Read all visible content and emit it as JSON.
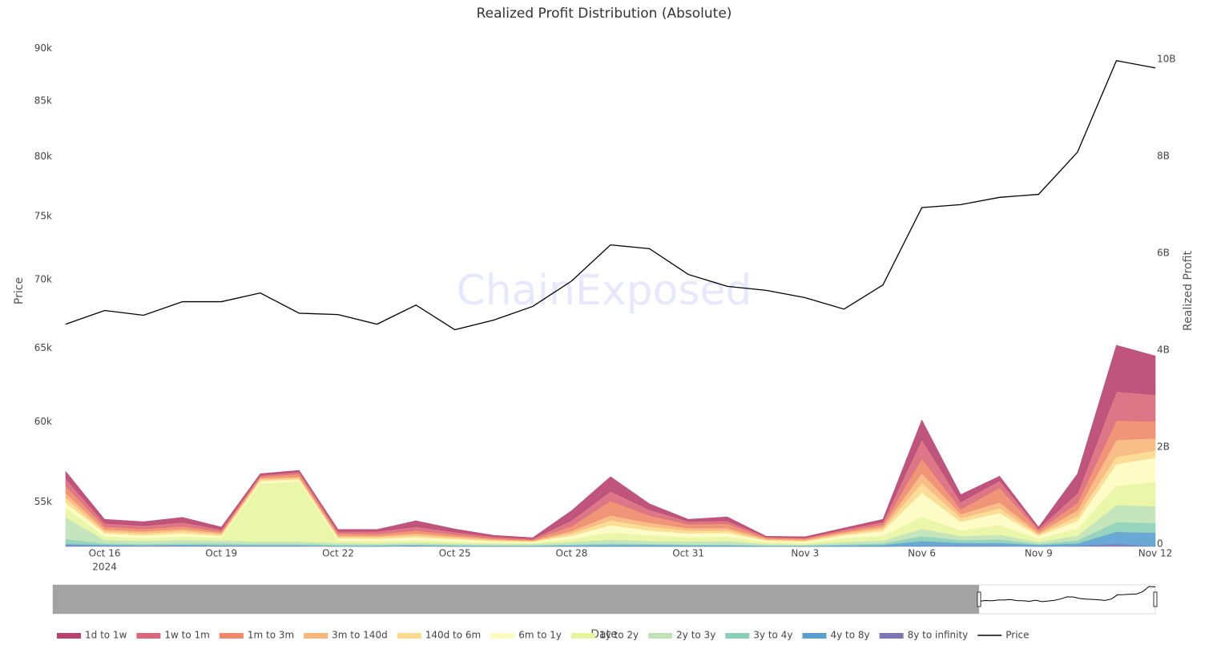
{
  "chart_data": {
    "type": "stacked_area",
    "title": "Realized Profit Distribution (Absolute)",
    "watermark": "ChainExposed",
    "x_label": "Date",
    "y_label": "Price",
    "y2_label": "Realized Profit",
    "x": [
      "2024-10-15",
      "2024-10-16",
      "2024-10-17",
      "2024-10-18",
      "2024-10-19",
      "2024-10-20",
      "2024-10-21",
      "2024-10-22",
      "2024-10-23",
      "2024-10-24",
      "2024-10-25",
      "2024-10-26",
      "2024-10-27",
      "2024-10-28",
      "2024-10-29",
      "2024-10-30",
      "2024-10-31",
      "2024-11-01",
      "2024-11-02",
      "2024-11-03",
      "2024-11-04",
      "2024-11-05",
      "2024-11-06",
      "2024-11-07",
      "2024-11-08",
      "2024-11-09",
      "2024-11-10",
      "2024-11-11",
      "2024-11-12"
    ],
    "xlim": [
      "2024-10-15",
      "2024-11-12"
    ],
    "xticks": [
      {
        "value": "2024-10-16",
        "label": "Oct 16"
      },
      {
        "value": "2024-10-19",
        "label": "Oct 19"
      },
      {
        "value": "2024-10-22",
        "label": "Oct 22"
      },
      {
        "value": "2024-10-25",
        "label": "Oct 25"
      },
      {
        "value": "2024-10-28",
        "label": "Oct 28"
      },
      {
        "value": "2024-10-31",
        "label": "Oct 31"
      },
      {
        "value": "2024-11-03",
        "label": "Nov 3"
      },
      {
        "value": "2024-11-06",
        "label": "Nov 6"
      },
      {
        "value": "2024-11-09",
        "label": "Nov 9"
      },
      {
        "value": "2024-11-12",
        "label": "Nov 12"
      }
    ],
    "xtick_year": "2024",
    "yscale": "log",
    "ylim": [
      52400,
      91600
    ],
    "yticks": [
      {
        "value": 55000,
        "label": "55k"
      },
      {
        "value": 60000,
        "label": "60k"
      },
      {
        "value": 65000,
        "label": "65k"
      },
      {
        "value": 70000,
        "label": "70k"
      },
      {
        "value": 75000,
        "label": "75k"
      },
      {
        "value": 80000,
        "label": "80k"
      },
      {
        "value": 85000,
        "label": "85k"
      },
      {
        "value": 90000,
        "label": "90k"
      }
    ],
    "y2lim": [
      0,
      10610000000
    ],
    "y2ticks": [
      0,
      {
        "value": 2000000000,
        "label": "2B"
      },
      {
        "value": 4000000000,
        "label": "4B"
      },
      {
        "value": 6000000000,
        "label": "6B"
      },
      {
        "value": 8000000000,
        "label": "8B"
      },
      {
        "value": 10000000000,
        "label": "10B"
      }
    ],
    "grid": false,
    "legend": "bottom",
    "series": [
      {
        "name": "1d to 1w",
        "type": "area",
        "axis": "y2",
        "color": "#b8416e",
        "values": [
          150000000.0,
          80000000.0,
          80000000.0,
          100000000.0,
          50000000.0,
          30000000.0,
          30000000.0,
          40000000.0,
          40000000.0,
          120000000.0,
          60000000.0,
          30000000.0,
          20000000.0,
          200000000.0,
          300000000.0,
          120000000.0,
          40000000.0,
          80000000.0,
          10000000.0,
          20000000.0,
          30000000.0,
          50000000.0,
          400000000.0,
          150000000.0,
          90000000.0,
          30000000.0,
          400000000.0,
          950000000.0,
          800000000.0
        ]
      },
      {
        "name": "1w to 1m",
        "type": "area",
        "axis": "y2",
        "color": "#d9687a",
        "values": [
          150000000.0,
          70000000.0,
          70000000.0,
          80000000.0,
          40000000.0,
          30000000.0,
          40000000.0,
          40000000.0,
          50000000.0,
          80000000.0,
          50000000.0,
          30000000.0,
          20000000.0,
          120000000.0,
          200000000.0,
          120000000.0,
          60000000.0,
          60000000.0,
          20000000.0,
          20000000.0,
          30000000.0,
          50000000.0,
          400000000.0,
          150000000.0,
          150000000.0,
          40000000.0,
          200000000.0,
          600000000.0,
          550000000.0
        ]
      },
      {
        "name": "1m to 3m",
        "type": "area",
        "axis": "y2",
        "color": "#f0896a",
        "values": [
          150000000.0,
          60000000.0,
          50000000.0,
          60000000.0,
          30000000.0,
          30000000.0,
          60000000.0,
          40000000.0,
          40000000.0,
          60000000.0,
          40000000.0,
          20000000.0,
          20000000.0,
          100000000.0,
          300000000.0,
          150000000.0,
          80000000.0,
          90000000.0,
          20000000.0,
          20000000.0,
          30000000.0,
          50000000.0,
          300000000.0,
          100000000.0,
          300000000.0,
          50000000.0,
          150000000.0,
          400000000.0,
          350000000.0
        ]
      },
      {
        "name": "3m to 140d",
        "type": "area",
        "axis": "y2",
        "color": "#f8b67a",
        "values": [
          100000000.0,
          40000000.0,
          40000000.0,
          40000000.0,
          30000000.0,
          30000000.0,
          30000000.0,
          30000000.0,
          30000000.0,
          40000000.0,
          30000000.0,
          20000000.0,
          10000000.0,
          50000000.0,
          100000000.0,
          80000000.0,
          50000000.0,
          50000000.0,
          20000000.0,
          20000000.0,
          30000000.0,
          40000000.0,
          200000000.0,
          80000000.0,
          120000000.0,
          30000000.0,
          120000000.0,
          350000000.0,
          250000000.0
        ]
      },
      {
        "name": "140d to 6m",
        "type": "area",
        "axis": "y2",
        "color": "#fbd98d",
        "values": [
          100000000.0,
          40000000.0,
          40000000.0,
          50000000.0,
          30000000.0,
          30000000.0,
          30000000.0,
          30000000.0,
          30000000.0,
          40000000.0,
          30000000.0,
          20000000.0,
          10000000.0,
          50000000.0,
          100000000.0,
          80000000.0,
          60000000.0,
          50000000.0,
          20000000.0,
          20000000.0,
          30000000.0,
          50000000.0,
          200000000.0,
          80000000.0,
          100000000.0,
          30000000.0,
          100000000.0,
          150000000.0,
          150000000.0
        ]
      },
      {
        "name": "6m to 1y",
        "type": "area",
        "axis": "y2",
        "color": "#fdfcc0",
        "values": [
          100000000.0,
          60000000.0,
          60000000.0,
          70000000.0,
          40000000.0,
          50000000.0,
          40000000.0,
          50000000.0,
          50000000.0,
          60000000.0,
          50000000.0,
          30000000.0,
          20000000.0,
          70000000.0,
          150000000.0,
          100000000.0,
          80000000.0,
          80000000.0,
          30000000.0,
          30000000.0,
          60000000.0,
          100000000.0,
          500000000.0,
          180000000.0,
          250000000.0,
          60000000.0,
          160000000.0,
          450000000.0,
          500000000.0
        ]
      },
      {
        "name": "1y to 2y",
        "type": "area",
        "axis": "y2",
        "color": "#e8f5a0",
        "values": [
          200000000.0,
          80000000.0,
          60000000.0,
          70000000.0,
          60000000.0,
          1200000000.0,
          1240000000.0,
          50000000.0,
          50000000.0,
          50000000.0,
          40000000.0,
          30000000.0,
          30000000.0,
          60000000.0,
          150000000.0,
          120000000.0,
          90000000.0,
          90000000.0,
          40000000.0,
          30000000.0,
          80000000.0,
          100000000.0,
          250000000.0,
          120000000.0,
          200000000.0,
          70000000.0,
          150000000.0,
          400000000.0,
          500000000.0
        ]
      },
      {
        "name": "2y to 3y",
        "type": "area",
        "axis": "y2",
        "color": "#bfe3b5",
        "values": [
          450000000.0,
          70000000.0,
          60000000.0,
          70000000.0,
          60000000.0,
          50000000.0,
          50000000.0,
          40000000.0,
          30000000.0,
          40000000.0,
          30000000.0,
          30000000.0,
          30000000.0,
          50000000.0,
          80000000.0,
          60000000.0,
          60000000.0,
          70000000.0,
          30000000.0,
          20000000.0,
          50000000.0,
          60000000.0,
          150000000.0,
          80000000.0,
          100000000.0,
          40000000.0,
          100000000.0,
          350000000.0,
          350000000.0
        ]
      },
      {
        "name": "3y to 4y",
        "type": "area",
        "axis": "y2",
        "color": "#8ccfb6",
        "values": [
          100000000.0,
          30000000.0,
          30000000.0,
          30000000.0,
          40000000.0,
          30000000.0,
          30000000.0,
          20000000.0,
          20000000.0,
          20000000.0,
          20000000.0,
          10000000.0,
          10000000.0,
          20000000.0,
          30000000.0,
          20000000.0,
          20000000.0,
          20000000.0,
          10000000.0,
          10000000.0,
          20000000.0,
          30000000.0,
          100000000.0,
          60000000.0,
          70000000.0,
          20000000.0,
          60000000.0,
          200000000.0,
          200000000.0
        ]
      },
      {
        "name": "4y to 8y",
        "type": "area",
        "axis": "y2",
        "color": "#5a9fd0",
        "values": [
          30000000.0,
          20000000.0,
          10000000.0,
          20000000.0,
          10000000.0,
          10000000.0,
          10000000.0,
          10000000.0,
          10000000.0,
          10000000.0,
          10000000.0,
          10000000.0,
          10000000.0,
          20000000.0,
          30000000.0,
          30000000.0,
          20000000.0,
          20000000.0,
          10000000.0,
          10000000.0,
          20000000.0,
          30000000.0,
          100000000.0,
          60000000.0,
          60000000.0,
          30000000.0,
          50000000.0,
          250000000.0,
          280000000.0
        ]
      },
      {
        "name": "8y to infinity",
        "type": "area",
        "axis": "y2",
        "color": "#7c76b5",
        "values": [
          20000000.0,
          10000000.0,
          10000000.0,
          10000000.0,
          10000000.0,
          10000000.0,
          10000000.0,
          0,
          0,
          10000000.0,
          0,
          0,
          0,
          0,
          0,
          0,
          0,
          0,
          0,
          0,
          0,
          0,
          10000000.0,
          10000000.0,
          10000000.0,
          0,
          10000000.0,
          50000000.0,
          0
        ]
      },
      {
        "name": "Price",
        "type": "line",
        "axis": "y",
        "color": "#000000",
        "values": [
          66700,
          67700,
          67350,
          68350,
          68350,
          69000,
          67500,
          67400,
          66700,
          68100,
          66300,
          67000,
          68000,
          69900,
          72700,
          72400,
          70400,
          69500,
          69200,
          68650,
          67800,
          69600,
          75700,
          75950,
          76550,
          76800,
          80400,
          88800,
          88100
        ]
      }
    ]
  }
}
